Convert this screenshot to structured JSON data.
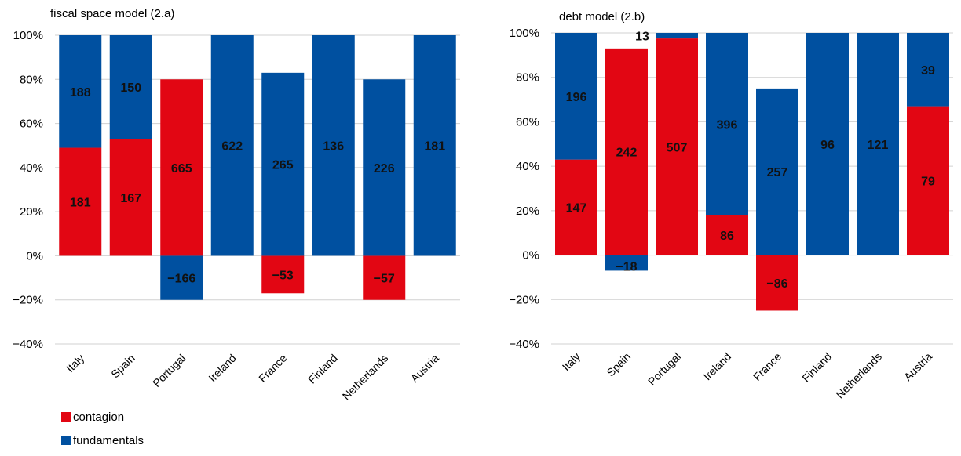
{
  "colors": {
    "contagion": "#e20613",
    "fundamentals": "#0050a0",
    "grid": "#d0d0d0",
    "text": "#000000"
  },
  "legend": {
    "items": [
      {
        "key": "contagion",
        "label": "contagion"
      },
      {
        "key": "fundamentals",
        "label": "fundamentals"
      }
    ],
    "position": "bottom-left"
  },
  "chart_data": [
    {
      "type": "bar",
      "stacked": true,
      "title": "fiscal space model (2.a)",
      "categories": [
        "Italy",
        "Spain",
        "Portugal",
        "Ireland",
        "France",
        "Finland",
        "Netherlands",
        "Austria"
      ],
      "ylim": [
        -40,
        100
      ],
      "yticks": [
        -40,
        -20,
        0,
        20,
        40,
        60,
        80,
        100
      ],
      "ytick_labels": [
        "−40%",
        "−20%",
        "0%",
        "20%",
        "40%",
        "60%",
        "80%",
        "100%"
      ],
      "grid": true,
      "series": [
        {
          "name": "contagion",
          "values": [
            49,
            53,
            80,
            0,
            -17,
            0,
            -20,
            0
          ]
        },
        {
          "name": "fundamentals",
          "values": [
            51,
            47,
            -20,
            100,
            83,
            100,
            80,
            100
          ]
        }
      ],
      "data_labels": [
        {
          "category": "Italy",
          "series": "fundamentals",
          "text": "188"
        },
        {
          "category": "Italy",
          "series": "contagion",
          "text": "181"
        },
        {
          "category": "Spain",
          "series": "fundamentals",
          "text": "150"
        },
        {
          "category": "Spain",
          "series": "contagion",
          "text": "167"
        },
        {
          "category": "Portugal",
          "series": "contagion",
          "text": "665"
        },
        {
          "category": "Portugal",
          "series": "fundamentals",
          "text": "−166"
        },
        {
          "category": "Ireland",
          "series": "fundamentals",
          "text": "622"
        },
        {
          "category": "France",
          "series": "fundamentals",
          "text": "265"
        },
        {
          "category": "France",
          "series": "contagion",
          "text": "−53"
        },
        {
          "category": "Finland",
          "series": "fundamentals",
          "text": "136"
        },
        {
          "category": "Netherlands",
          "series": "fundamentals",
          "text": "226"
        },
        {
          "category": "Netherlands",
          "series": "contagion",
          "text": "−57"
        },
        {
          "category": "Austria",
          "series": "fundamentals",
          "text": "181"
        }
      ]
    },
    {
      "type": "bar",
      "stacked": true,
      "title": "debt model (2.b)",
      "categories": [
        "Italy",
        "Spain",
        "Portugal",
        "Ireland",
        "France",
        "Finland",
        "Netherlands",
        "Austria"
      ],
      "ylim": [
        -40,
        100
      ],
      "yticks": [
        -40,
        -20,
        0,
        20,
        40,
        60,
        80,
        100
      ],
      "ytick_labels": [
        "−40%",
        "−20%",
        "0%",
        "20%",
        "40%",
        "60%",
        "80%",
        "100%"
      ],
      "grid": true,
      "series": [
        {
          "name": "contagion",
          "values": [
            43,
            93,
            97.5,
            18,
            -25,
            0,
            0,
            67
          ]
        },
        {
          "name": "fundamentals",
          "values": [
            57,
            -7,
            2.5,
            82,
            75,
            100,
            100,
            33
          ]
        }
      ],
      "data_labels": [
        {
          "category": "Italy",
          "series": "fundamentals",
          "text": "196"
        },
        {
          "category": "Italy",
          "series": "contagion",
          "text": "147"
        },
        {
          "category": "Spain",
          "series": "contagion",
          "text": "242"
        },
        {
          "category": "Spain",
          "series": "fundamentals",
          "text": "−18"
        },
        {
          "category": "Portugal",
          "series": "fundamentals",
          "text": "13"
        },
        {
          "category": "Portugal",
          "series": "contagion",
          "text": "507"
        },
        {
          "category": "Ireland",
          "series": "fundamentals",
          "text": "396"
        },
        {
          "category": "Ireland",
          "series": "contagion",
          "text": "86"
        },
        {
          "category": "France",
          "series": "fundamentals",
          "text": "257"
        },
        {
          "category": "France",
          "series": "contagion",
          "text": "−86"
        },
        {
          "category": "Finland",
          "series": "fundamentals",
          "text": "96"
        },
        {
          "category": "Netherlands",
          "series": "fundamentals",
          "text": "121"
        },
        {
          "category": "Austria",
          "series": "fundamentals",
          "text": "39"
        },
        {
          "category": "Austria",
          "series": "contagion",
          "text": "79"
        }
      ]
    }
  ]
}
